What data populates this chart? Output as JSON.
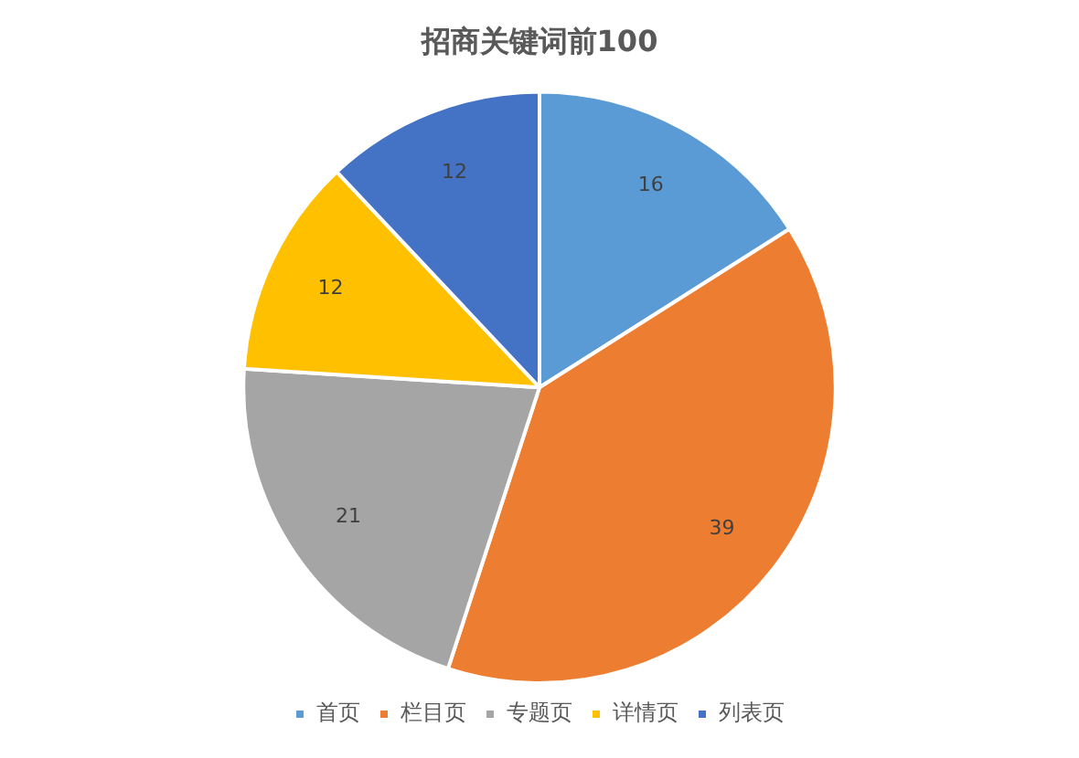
{
  "chart_data": {
    "type": "pie",
    "title": "招商关键词前100",
    "categories": [
      "首页",
      "栏目页",
      "专题页",
      "详情页",
      "列表页"
    ],
    "values": [
      16,
      39,
      21,
      12,
      12
    ],
    "colors": [
      "#5b9bd5",
      "#ed7d31",
      "#a5a5a5",
      "#ffc000",
      "#4472c4"
    ],
    "data_labels": true,
    "legend": "bottom"
  }
}
